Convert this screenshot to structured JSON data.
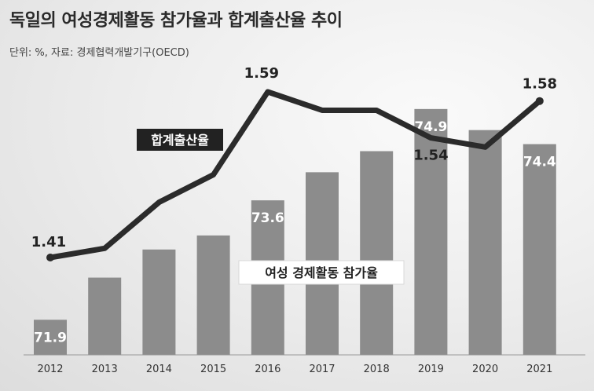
{
  "title": "독일의 여성경제활동 참가율과 합계출산율 추이",
  "subtitle": "단위: %, 자료: 경제협력개발기구(OECD)",
  "chart_data": {
    "type": "bar+line",
    "categories": [
      "2012",
      "2013",
      "2014",
      "2015",
      "2016",
      "2017",
      "2018",
      "2019",
      "2020",
      "2021"
    ],
    "series": [
      {
        "name": "여성 경제활동 참가율",
        "type": "bar",
        "values": [
          71.9,
          72.5,
          72.9,
          73.1,
          73.6,
          74.0,
          74.3,
          74.9,
          74.6,
          74.4
        ],
        "labels": {
          "0": "71.9",
          "4": "73.6",
          "7": "74.9",
          "9": "74.4"
        }
      },
      {
        "name": "합계출산율",
        "type": "line",
        "values": [
          1.41,
          1.42,
          1.47,
          1.5,
          1.59,
          1.57,
          1.57,
          1.54,
          1.53,
          1.58
        ],
        "labels": {
          "0": "1.41",
          "4": "1.59",
          "7": "1.54",
          "9": "1.58"
        }
      }
    ],
    "bar_axis_range": [
      71.4,
      75.2
    ],
    "line_axis_range": [
      1.36,
      1.61
    ],
    "colors": {
      "bar": "#8c8c8c",
      "line": "#2b2b2b"
    },
    "legend": "inline-labels"
  }
}
